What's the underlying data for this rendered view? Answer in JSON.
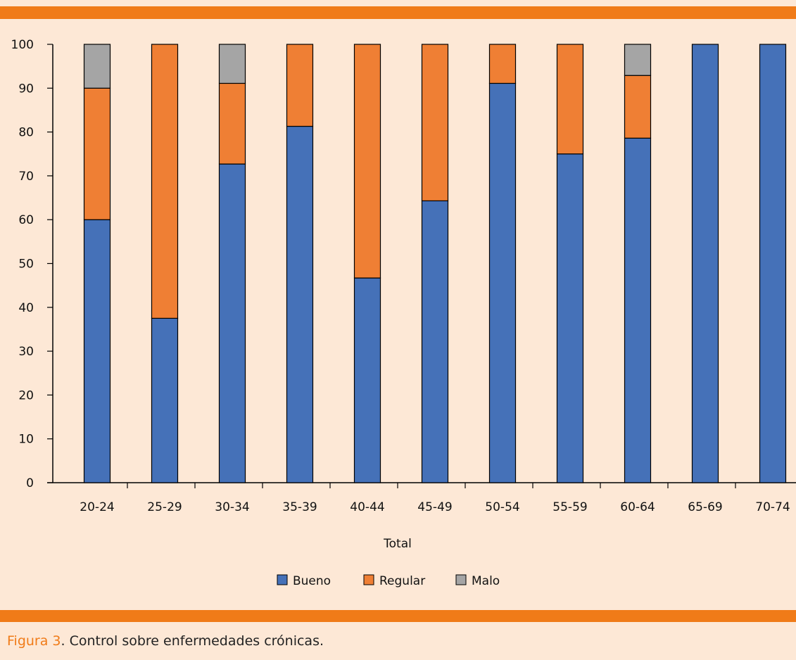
{
  "chart_data": {
    "type": "bar",
    "stacked": true,
    "categories": [
      "20-24",
      "25-29",
      "30-34",
      "35-39",
      "40-44",
      "45-49",
      "50-54",
      "55-59",
      "60-64",
      "65-69",
      "70-74"
    ],
    "series": [
      {
        "name": "Bueno",
        "color": "#4571b8",
        "values": [
          60,
          37.5,
          72.7,
          81.3,
          46.7,
          64.3,
          91.1,
          75,
          78.6,
          100,
          100
        ]
      },
      {
        "name": "Regular",
        "color": "#ef7f34",
        "values": [
          30,
          62.5,
          18.4,
          18.7,
          53.3,
          35.7,
          8.9,
          25,
          14.3,
          0,
          0
        ]
      },
      {
        "name": "Malo",
        "color": "#a5a5a5",
        "values": [
          10,
          0,
          8.9,
          0,
          0,
          0,
          0,
          0,
          7.1,
          0,
          0
        ]
      }
    ],
    "yticks": [
      "0",
      "10",
      "20",
      "30",
      "40",
      "50",
      "60",
      "70",
      "80",
      "90",
      "100"
    ],
    "ylim": [
      0,
      100
    ],
    "xlabel": "Total",
    "ylabel": "",
    "legend_position": "bottom"
  },
  "caption": {
    "label": "Figura 3",
    "text": ". Control sobre enfermedades crónicas."
  }
}
